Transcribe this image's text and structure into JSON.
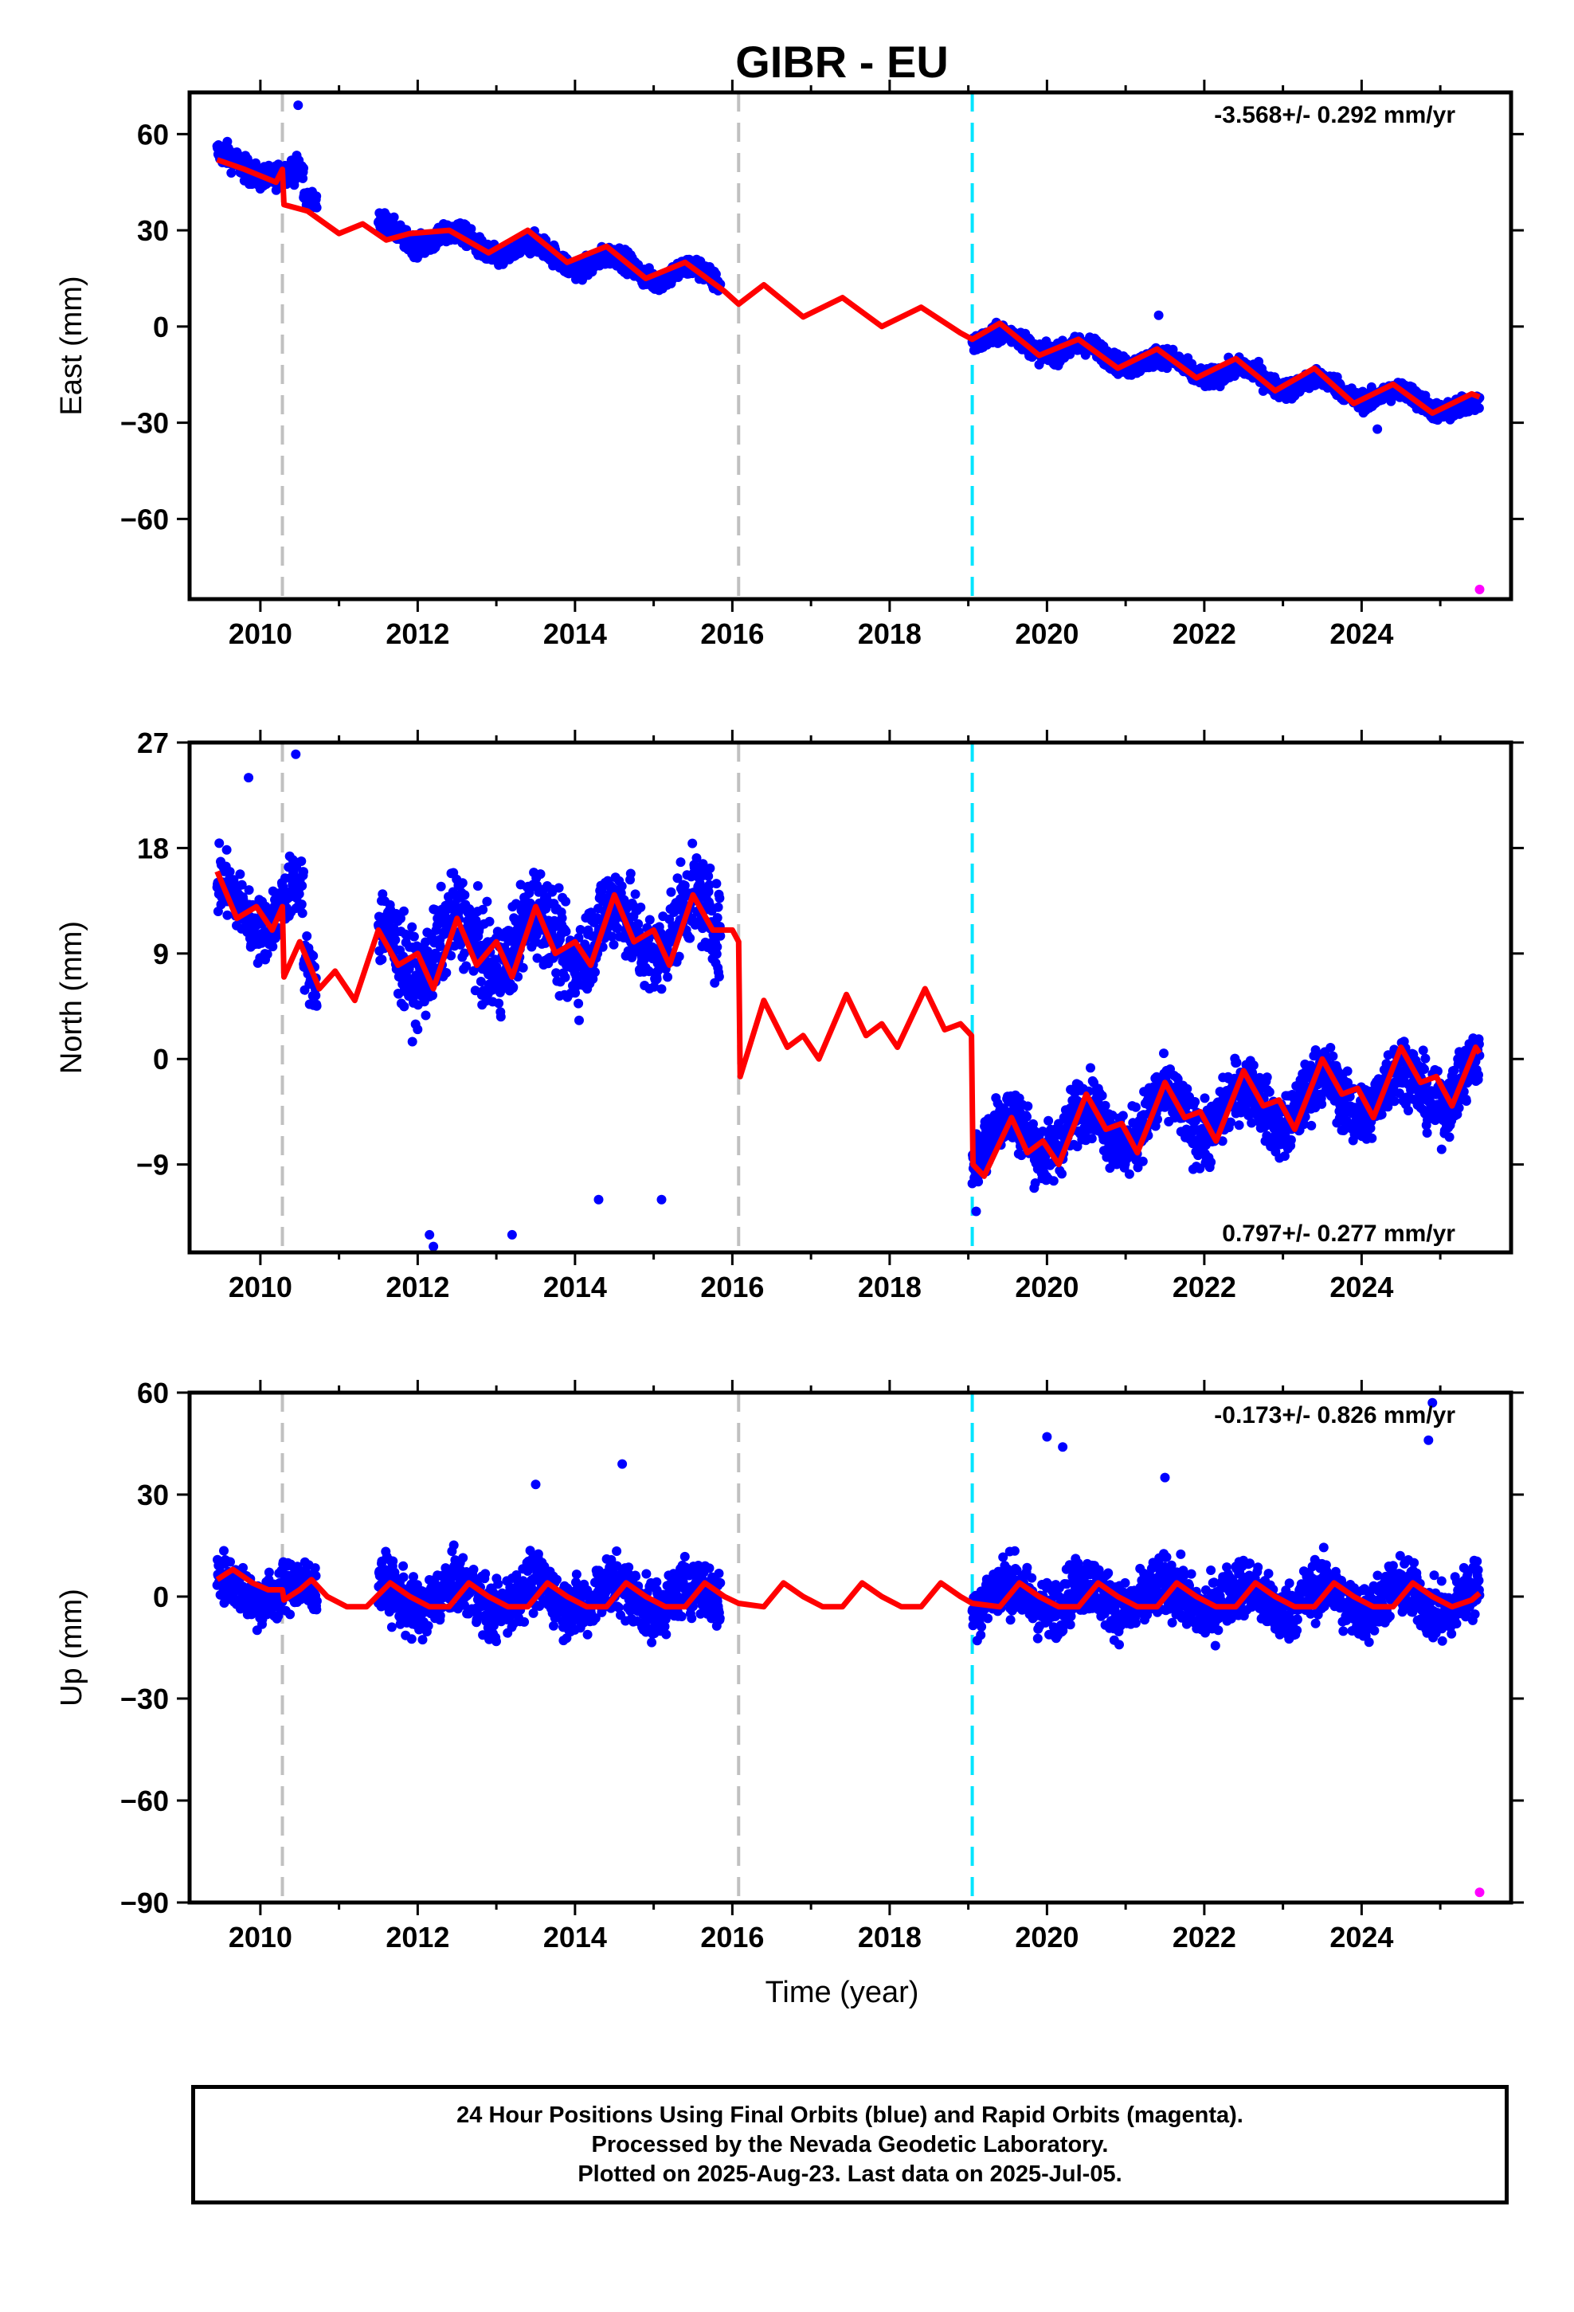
{
  "title": "GIBR - EU",
  "xlabel": "Time (year)",
  "footer": {
    "line1": "24 Hour Positions Using Final Orbits (blue) and Rapid Orbits (magenta).",
    "line2": "Processed by the Nevada Geodetic Laboratory.",
    "line3": "Plotted on 2025-Aug-23. Last data on 2025-Jul-05."
  },
  "colors": {
    "final_orbits": "#0000ff",
    "rapid_orbits": "#ff00ff",
    "model": "#ff0000",
    "equipment_change": "#c0c0c0",
    "earthquake": "#00e5ff"
  },
  "chart_data": [
    {
      "type": "scatter",
      "ylabel": "East (mm)",
      "rate_label": "-3.568+/- 0.292 mm/yr",
      "rate_position": "top-right",
      "xlim": [
        2009.1,
        2025.9
      ],
      "ylim": [
        -85,
        73
      ],
      "xticks": [
        2010,
        2012,
        2014,
        2016,
        2018,
        2020,
        2022,
        2024
      ],
      "yticks": [
        60,
        30,
        0,
        -30,
        -60
      ],
      "vlines_gray": [
        2010.28,
        2016.08
      ],
      "vlines_cyan": [
        2019.05
      ],
      "data_segments": [
        {
          "start": 2009.45,
          "end": 2010.55,
          "y0": 52,
          "slope": -5.5,
          "amp": 2.5,
          "noise": 3.5
        },
        {
          "start": 2010.55,
          "end": 2010.72,
          "y0": 39,
          "slope": -5,
          "amp": 1.5,
          "noise": 2.5
        },
        {
          "start": 2011.5,
          "end": 2015.85,
          "y0": 30,
          "slope": -3.6,
          "amp": 3.0,
          "noise": 3.0
        },
        {
          "start": 2019.05,
          "end": 2025.5,
          "y0": -3,
          "slope": -3.57,
          "amp": 2.5,
          "noise": 2.8
        }
      ],
      "outliers": [
        [
          2010.48,
          69
        ],
        [
          2021.42,
          3.5
        ],
        [
          2024.2,
          -32
        ]
      ],
      "rapid_points": [
        [
          2025.5,
          -82
        ]
      ],
      "model": [
        [
          2009.45,
          52
        ],
        [
          2009.8,
          49
        ],
        [
          2010.2,
          45
        ],
        [
          2010.28,
          49
        ],
        [
          2010.3,
          38
        ],
        [
          2010.6,
          36
        ],
        [
          2011.0,
          29
        ],
        [
          2011.3,
          32
        ],
        [
          2011.6,
          27
        ],
        [
          2011.9,
          29
        ],
        [
          2012.4,
          30
        ],
        [
          2012.9,
          23
        ],
        [
          2013.4,
          30
        ],
        [
          2013.9,
          20
        ],
        [
          2014.4,
          25
        ],
        [
          2014.9,
          15
        ],
        [
          2015.4,
          20
        ],
        [
          2015.9,
          11
        ],
        [
          2016.08,
          7
        ],
        [
          2016.4,
          13
        ],
        [
          2016.9,
          3
        ],
        [
          2017.4,
          9
        ],
        [
          2017.9,
          0
        ],
        [
          2018.4,
          6
        ],
        [
          2018.9,
          -2
        ],
        [
          2019.05,
          -4
        ],
        [
          2019.4,
          1
        ],
        [
          2019.9,
          -9
        ],
        [
          2020.4,
          -4
        ],
        [
          2020.9,
          -13
        ],
        [
          2021.4,
          -7
        ],
        [
          2021.9,
          -16
        ],
        [
          2022.4,
          -10
        ],
        [
          2022.9,
          -20
        ],
        [
          2023.4,
          -13
        ],
        [
          2023.9,
          -24
        ],
        [
          2024.4,
          -18
        ],
        [
          2024.9,
          -27
        ],
        [
          2025.4,
          -21
        ],
        [
          2025.5,
          -22
        ]
      ]
    },
    {
      "type": "scatter",
      "ylabel": "North (mm)",
      "rate_label": "0.797+/- 0.277 mm/yr",
      "rate_position": "bottom-right",
      "xlim": [
        2009.1,
        2025.9
      ],
      "ylim": [
        -16.5,
        27
      ],
      "xticks": [
        2010,
        2012,
        2014,
        2016,
        2018,
        2020,
        2022,
        2024
      ],
      "yticks": [
        27,
        18,
        9,
        0,
        -9
      ],
      "vlines_gray": [
        2010.28,
        2016.08
      ],
      "vlines_cyan": [
        2019.05
      ],
      "data_segments": [
        {
          "start": 2009.45,
          "end": 2010.55,
          "y0": 13,
          "slope": 0,
          "amp": 2.0,
          "noise": 2.5
        },
        {
          "start": 2010.55,
          "end": 2010.72,
          "y0": 7,
          "slope": -8,
          "amp": 1.5,
          "noise": 2.5
        },
        {
          "start": 2011.5,
          "end": 2015.85,
          "y0": 9,
          "slope": 0.6,
          "amp": 2.5,
          "noise": 3.5
        },
        {
          "start": 2019.05,
          "end": 2025.5,
          "y0": -7,
          "slope": 0.8,
          "amp": 2.0,
          "noise": 2.5
        }
      ],
      "outliers": [
        [
          2009.85,
          24
        ],
        [
          2010.45,
          26
        ],
        [
          2012.15,
          -15
        ],
        [
          2012.2,
          -16
        ],
        [
          2013.2,
          -15
        ],
        [
          2014.3,
          -12
        ],
        [
          2015.1,
          -12
        ],
        [
          2019.1,
          -13
        ]
      ],
      "rapid_points": [],
      "model": [
        [
          2009.45,
          16
        ],
        [
          2009.7,
          12
        ],
        [
          2009.95,
          13
        ],
        [
          2010.15,
          11
        ],
        [
          2010.28,
          13
        ],
        [
          2010.3,
          7
        ],
        [
          2010.5,
          10
        ],
        [
          2010.75,
          6
        ],
        [
          2010.95,
          7.5
        ],
        [
          2011.2,
          5
        ],
        [
          2011.5,
          11
        ],
        [
          2011.75,
          8
        ],
        [
          2012.0,
          9
        ],
        [
          2012.2,
          6
        ],
        [
          2012.5,
          12
        ],
        [
          2012.75,
          8
        ],
        [
          2013.0,
          10
        ],
        [
          2013.2,
          7
        ],
        [
          2013.5,
          13
        ],
        [
          2013.75,
          9
        ],
        [
          2014.0,
          10
        ],
        [
          2014.2,
          8
        ],
        [
          2014.5,
          14
        ],
        [
          2014.75,
          10
        ],
        [
          2015.0,
          11
        ],
        [
          2015.2,
          8
        ],
        [
          2015.5,
          14
        ],
        [
          2015.75,
          11
        ],
        [
          2016.0,
          11
        ],
        [
          2016.08,
          10
        ],
        [
          2016.1,
          -1.5
        ],
        [
          2016.4,
          5
        ],
        [
          2016.7,
          1
        ],
        [
          2016.9,
          2
        ],
        [
          2017.1,
          0
        ],
        [
          2017.45,
          5.5
        ],
        [
          2017.7,
          2
        ],
        [
          2017.9,
          3
        ],
        [
          2018.1,
          1
        ],
        [
          2018.45,
          6
        ],
        [
          2018.7,
          2.5
        ],
        [
          2018.9,
          3
        ],
        [
          2019.04,
          2
        ],
        [
          2019.06,
          -9
        ],
        [
          2019.2,
          -10
        ],
        [
          2019.55,
          -5
        ],
        [
          2019.75,
          -8
        ],
        [
          2019.95,
          -7
        ],
        [
          2020.15,
          -9
        ],
        [
          2020.5,
          -3
        ],
        [
          2020.75,
          -6
        ],
        [
          2020.95,
          -5.5
        ],
        [
          2021.15,
          -8
        ],
        [
          2021.5,
          -2
        ],
        [
          2021.75,
          -5
        ],
        [
          2021.95,
          -4.5
        ],
        [
          2022.15,
          -7
        ],
        [
          2022.5,
          -1
        ],
        [
          2022.75,
          -4
        ],
        [
          2022.95,
          -3.5
        ],
        [
          2023.15,
          -6
        ],
        [
          2023.5,
          0
        ],
        [
          2023.75,
          -3
        ],
        [
          2023.95,
          -2.5
        ],
        [
          2024.15,
          -5
        ],
        [
          2024.5,
          1
        ],
        [
          2024.75,
          -2
        ],
        [
          2024.95,
          -1.5
        ],
        [
          2025.15,
          -4
        ],
        [
          2025.45,
          1
        ],
        [
          2025.5,
          0.5
        ]
      ]
    },
    {
      "type": "scatter",
      "ylabel": "Up (mm)",
      "rate_label": "-0.173+/- 0.826 mm/yr",
      "rate_position": "top-right",
      "xlim": [
        2009.1,
        2025.9
      ],
      "ylim": [
        -90,
        60
      ],
      "xticks": [
        2010,
        2012,
        2014,
        2016,
        2018,
        2020,
        2022,
        2024
      ],
      "yticks": [
        60,
        30,
        0,
        -30,
        -60,
        -90
      ],
      "vlines_gray": [
        2010.28,
        2016.08
      ],
      "vlines_cyan": [
        2019.05
      ],
      "data_segments": [
        {
          "start": 2009.45,
          "end": 2010.72,
          "y0": 3,
          "slope": -2,
          "amp": 3.0,
          "noise": 7
        },
        {
          "start": 2011.5,
          "end": 2015.85,
          "y0": 0,
          "slope": 0,
          "amp": 4.0,
          "noise": 8
        },
        {
          "start": 2019.05,
          "end": 2025.5,
          "y0": 0,
          "slope": -0.2,
          "amp": 4.0,
          "noise": 8
        }
      ],
      "outliers": [
        [
          2014.6,
          39
        ],
        [
          2020.0,
          47
        ],
        [
          2020.2,
          44
        ],
        [
          2024.9,
          57
        ],
        [
          2024.85,
          46
        ],
        [
          2013.5,
          33
        ],
        [
          2021.5,
          35
        ]
      ],
      "rapid_points": [
        [
          2025.5,
          -87
        ]
      ],
      "model": [
        [
          2009.45,
          5
        ],
        [
          2009.65,
          8
        ],
        [
          2009.9,
          4
        ],
        [
          2010.1,
          2
        ],
        [
          2010.28,
          2
        ],
        [
          2010.3,
          -1
        ],
        [
          2010.5,
          2
        ],
        [
          2010.65,
          5
        ],
        [
          2010.85,
          0
        ],
        [
          2011.1,
          -3
        ],
        [
          2011.35,
          -3
        ],
        [
          2011.65,
          4
        ],
        [
          2011.9,
          0
        ],
        [
          2012.15,
          -3
        ],
        [
          2012.4,
          -3
        ],
        [
          2012.65,
          4
        ],
        [
          2012.9,
          0
        ],
        [
          2013.15,
          -3
        ],
        [
          2013.4,
          -3
        ],
        [
          2013.65,
          4
        ],
        [
          2013.9,
          0
        ],
        [
          2014.15,
          -3
        ],
        [
          2014.4,
          -3
        ],
        [
          2014.65,
          4
        ],
        [
          2014.9,
          0
        ],
        [
          2015.15,
          -3
        ],
        [
          2015.4,
          -3
        ],
        [
          2015.65,
          4
        ],
        [
          2015.9,
          0
        ],
        [
          2016.08,
          -2
        ],
        [
          2016.4,
          -3
        ],
        [
          2016.65,
          4
        ],
        [
          2016.9,
          0
        ],
        [
          2017.15,
          -3
        ],
        [
          2017.4,
          -3
        ],
        [
          2017.65,
          4
        ],
        [
          2017.9,
          0
        ],
        [
          2018.15,
          -3
        ],
        [
          2018.4,
          -3
        ],
        [
          2018.65,
          4
        ],
        [
          2018.9,
          0
        ],
        [
          2019.05,
          -2
        ],
        [
          2019.4,
          -3
        ],
        [
          2019.65,
          4
        ],
        [
          2019.9,
          0
        ],
        [
          2020.15,
          -3
        ],
        [
          2020.4,
          -3
        ],
        [
          2020.65,
          4
        ],
        [
          2020.9,
          0
        ],
        [
          2021.15,
          -3
        ],
        [
          2021.4,
          -3
        ],
        [
          2021.65,
          4
        ],
        [
          2021.9,
          0
        ],
        [
          2022.15,
          -3
        ],
        [
          2022.4,
          -3
        ],
        [
          2022.65,
          4
        ],
        [
          2022.9,
          0
        ],
        [
          2023.15,
          -3
        ],
        [
          2023.4,
          -3
        ],
        [
          2023.65,
          4
        ],
        [
          2023.9,
          0
        ],
        [
          2024.15,
          -3
        ],
        [
          2024.4,
          -3
        ],
        [
          2024.65,
          4
        ],
        [
          2024.9,
          0
        ],
        [
          2025.15,
          -3
        ],
        [
          2025.4,
          -1
        ],
        [
          2025.5,
          1
        ]
      ]
    }
  ]
}
